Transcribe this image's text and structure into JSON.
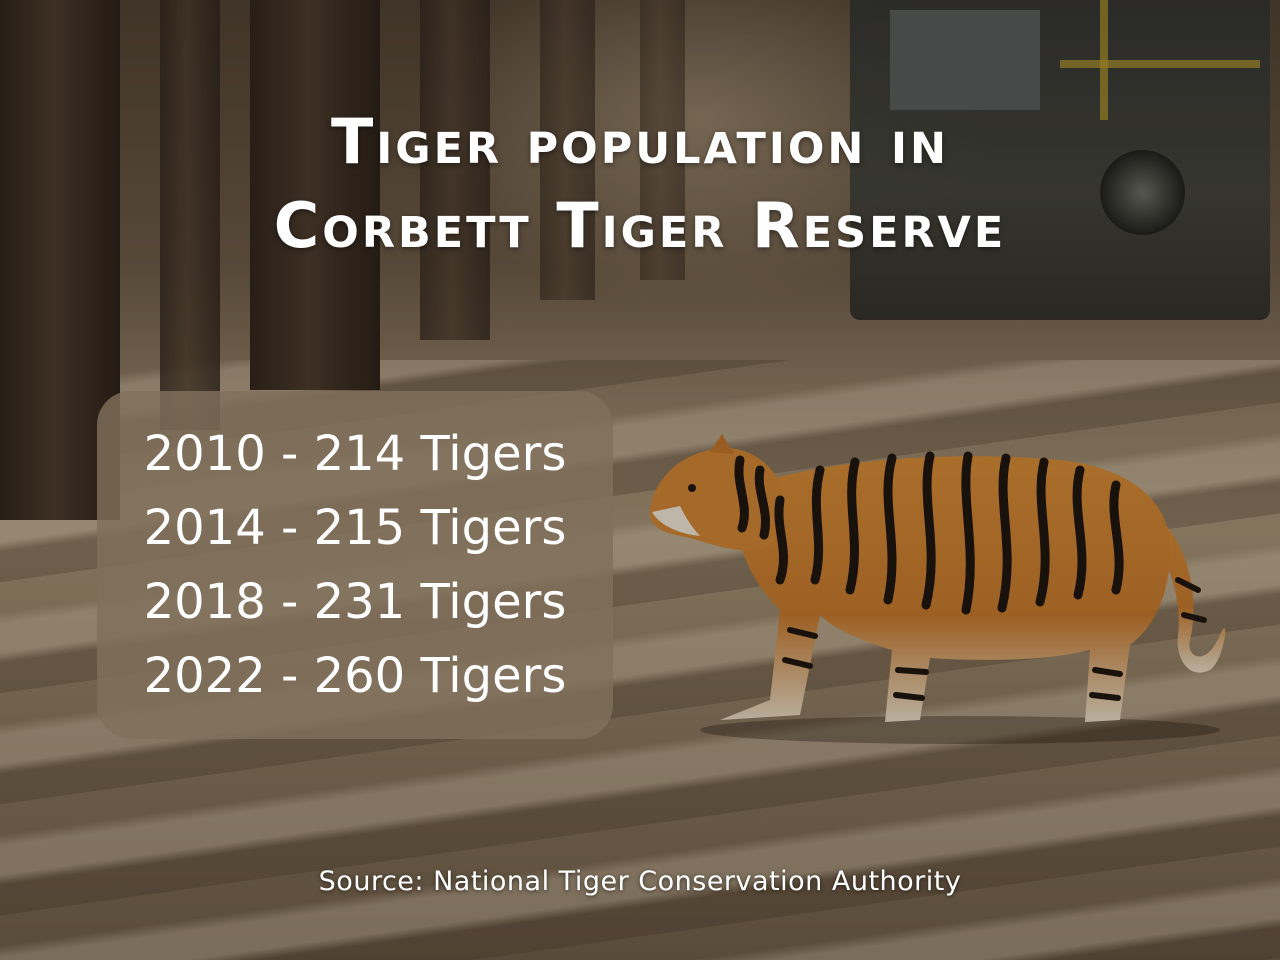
{
  "title": {
    "line1": "Tiger population in",
    "line2": "Corbett Tiger Reserve"
  },
  "stats": [
    {
      "label": "2010 - 214 Tigers"
    },
    {
      "label": "2014 - 215 Tigers"
    },
    {
      "label": "2018 - 231 Tigers"
    },
    {
      "label": "2022 - 260 Tigers"
    }
  ],
  "source": "Source: National Tiger Conservation Authority",
  "colors": {
    "text": "#ffffff",
    "box": "#80705c",
    "tiger_orange": "#c87a2e",
    "tiger_stripe": "#1c140e"
  }
}
